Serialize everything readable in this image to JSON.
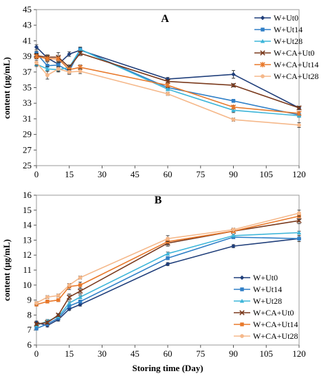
{
  "chart_data": [
    {
      "type": "line",
      "panel_label": "A",
      "ylabel": "content (μg/mL)",
      "xlabel": "",
      "xlim": [
        0,
        120
      ],
      "ylim": [
        25,
        45
      ],
      "xticks": [
        "0",
        "15",
        "30",
        "45",
        "60",
        "75",
        "90",
        "105",
        "120"
      ],
      "yticks": [
        "25",
        "27",
        "29",
        "31",
        "33",
        "35",
        "37",
        "39",
        "41",
        "43",
        "45"
      ],
      "legend_position": "top-right",
      "x": [
        0,
        5,
        10,
        15,
        20,
        60,
        90,
        120
      ],
      "series": [
        {
          "name": "W+Ut0",
          "color": "#1f3e7a",
          "marker": "diamond",
          "values": [
            40.2,
            38.8,
            38.0,
            39.3,
            39.8,
            36.1,
            36.7,
            32.4
          ],
          "errors": [
            0.3,
            0.3,
            0.3,
            0.3,
            0.3,
            0.2,
            0.5,
            0.2
          ]
        },
        {
          "name": "W+Ut14",
          "color": "#2f7fc7",
          "marker": "square",
          "values": [
            39.4,
            37.8,
            37.9,
            37.1,
            39.9,
            35.0,
            33.3,
            31.5
          ],
          "errors": [
            0.3,
            0.5,
            0.3,
            0.3,
            0.3,
            0.2,
            0.2,
            0.2
          ]
        },
        {
          "name": "W+Ut28",
          "color": "#3cb5d9",
          "marker": "triangle",
          "values": [
            38.0,
            37.4,
            37.3,
            37.6,
            39.9,
            34.8,
            32.1,
            31.4
          ],
          "errors": [
            0.3,
            0.3,
            0.3,
            0.3,
            0.3,
            0.2,
            0.3,
            0.2
          ]
        },
        {
          "name": "W+CA+Ut0",
          "color": "#7a3a1d",
          "marker": "x",
          "values": [
            39.1,
            38.9,
            38.9,
            37.6,
            39.4,
            35.8,
            35.3,
            32.4
          ],
          "errors": [
            0.3,
            0.3,
            0.6,
            0.3,
            0.3,
            0.2,
            0.2,
            0.2
          ]
        },
        {
          "name": "W+CA+Ut14",
          "color": "#e8782a",
          "marker": "star",
          "values": [
            39.0,
            38.7,
            38.7,
            37.3,
            37.6,
            35.3,
            32.5,
            31.7
          ],
          "errors": [
            0.3,
            0.3,
            0.3,
            0.4,
            0.3,
            0.2,
            0.2,
            0.2
          ]
        },
        {
          "name": "W+CA+Ut28",
          "color": "#f5b88a",
          "marker": "circle",
          "values": [
            38.2,
            36.6,
            37.4,
            37.0,
            37.1,
            34.2,
            30.9,
            30.2
          ],
          "errors": [
            0.3,
            0.5,
            0.3,
            0.3,
            0.3,
            0.2,
            0.2,
            0.3
          ]
        }
      ]
    },
    {
      "type": "line",
      "panel_label": "B",
      "ylabel": "content (μg/mL)",
      "xlabel": "Storing time (Day)",
      "xlim": [
        0,
        120
      ],
      "ylim": [
        6,
        16
      ],
      "xticks": [
        "0",
        "15",
        "30",
        "45",
        "60",
        "75",
        "90",
        "105",
        "120"
      ],
      "yticks": [
        "6",
        "7",
        "8",
        "9",
        "10",
        "11",
        "12",
        "13",
        "14",
        "15",
        "16"
      ],
      "legend_position": "bottom-right",
      "x": [
        0,
        5,
        10,
        15,
        20,
        60,
        90,
        120
      ],
      "series": [
        {
          "name": "W+Ut0",
          "color": "#1f3e7a",
          "marker": "diamond",
          "values": [
            7.5,
            7.3,
            7.7,
            8.4,
            8.7,
            11.4,
            12.6,
            13.1
          ],
          "errors": [
            0.1,
            0.1,
            0.1,
            0.1,
            0.1,
            0.1,
            0.1,
            0.2
          ]
        },
        {
          "name": "W+Ut14",
          "color": "#2f7fc7",
          "marker": "square",
          "values": [
            7.1,
            7.4,
            7.8,
            8.6,
            8.9,
            11.8,
            13.2,
            13.1
          ],
          "errors": [
            0.1,
            0.1,
            0.1,
            0.1,
            0.1,
            0.1,
            0.1,
            0.2
          ]
        },
        {
          "name": "W+Ut28",
          "color": "#3cb5d9",
          "marker": "triangle",
          "values": [
            7.3,
            7.6,
            7.9,
            8.8,
            9.2,
            12.1,
            13.3,
            13.5
          ],
          "errors": [
            0.1,
            0.1,
            0.1,
            0.1,
            0.1,
            0.1,
            0.1,
            0.1
          ]
        },
        {
          "name": "W+CA+Ut0",
          "color": "#7a3a1d",
          "marker": "x",
          "values": [
            7.4,
            7.5,
            8.0,
            9.2,
            9.6,
            12.8,
            13.6,
            14.3
          ],
          "errors": [
            0.1,
            0.1,
            0.1,
            0.2,
            0.2,
            0.2,
            0.1,
            0.2
          ]
        },
        {
          "name": "W+CA+Ut14",
          "color": "#e8782a",
          "marker": "square",
          "values": [
            8.7,
            8.9,
            9.0,
            9.9,
            10.0,
            12.9,
            13.6,
            14.6
          ],
          "errors": [
            0.1,
            0.1,
            0.1,
            0.2,
            0.2,
            0.2,
            0.1,
            0.2
          ]
        },
        {
          "name": "W+CA+Ut28",
          "color": "#f5b88a",
          "marker": "circle",
          "values": [
            8.8,
            9.2,
            9.3,
            10.0,
            10.5,
            13.1,
            13.7,
            14.8
          ],
          "errors": [
            0.1,
            0.1,
            0.1,
            0.1,
            0.1,
            0.2,
            0.1,
            0.2
          ]
        }
      ]
    }
  ]
}
